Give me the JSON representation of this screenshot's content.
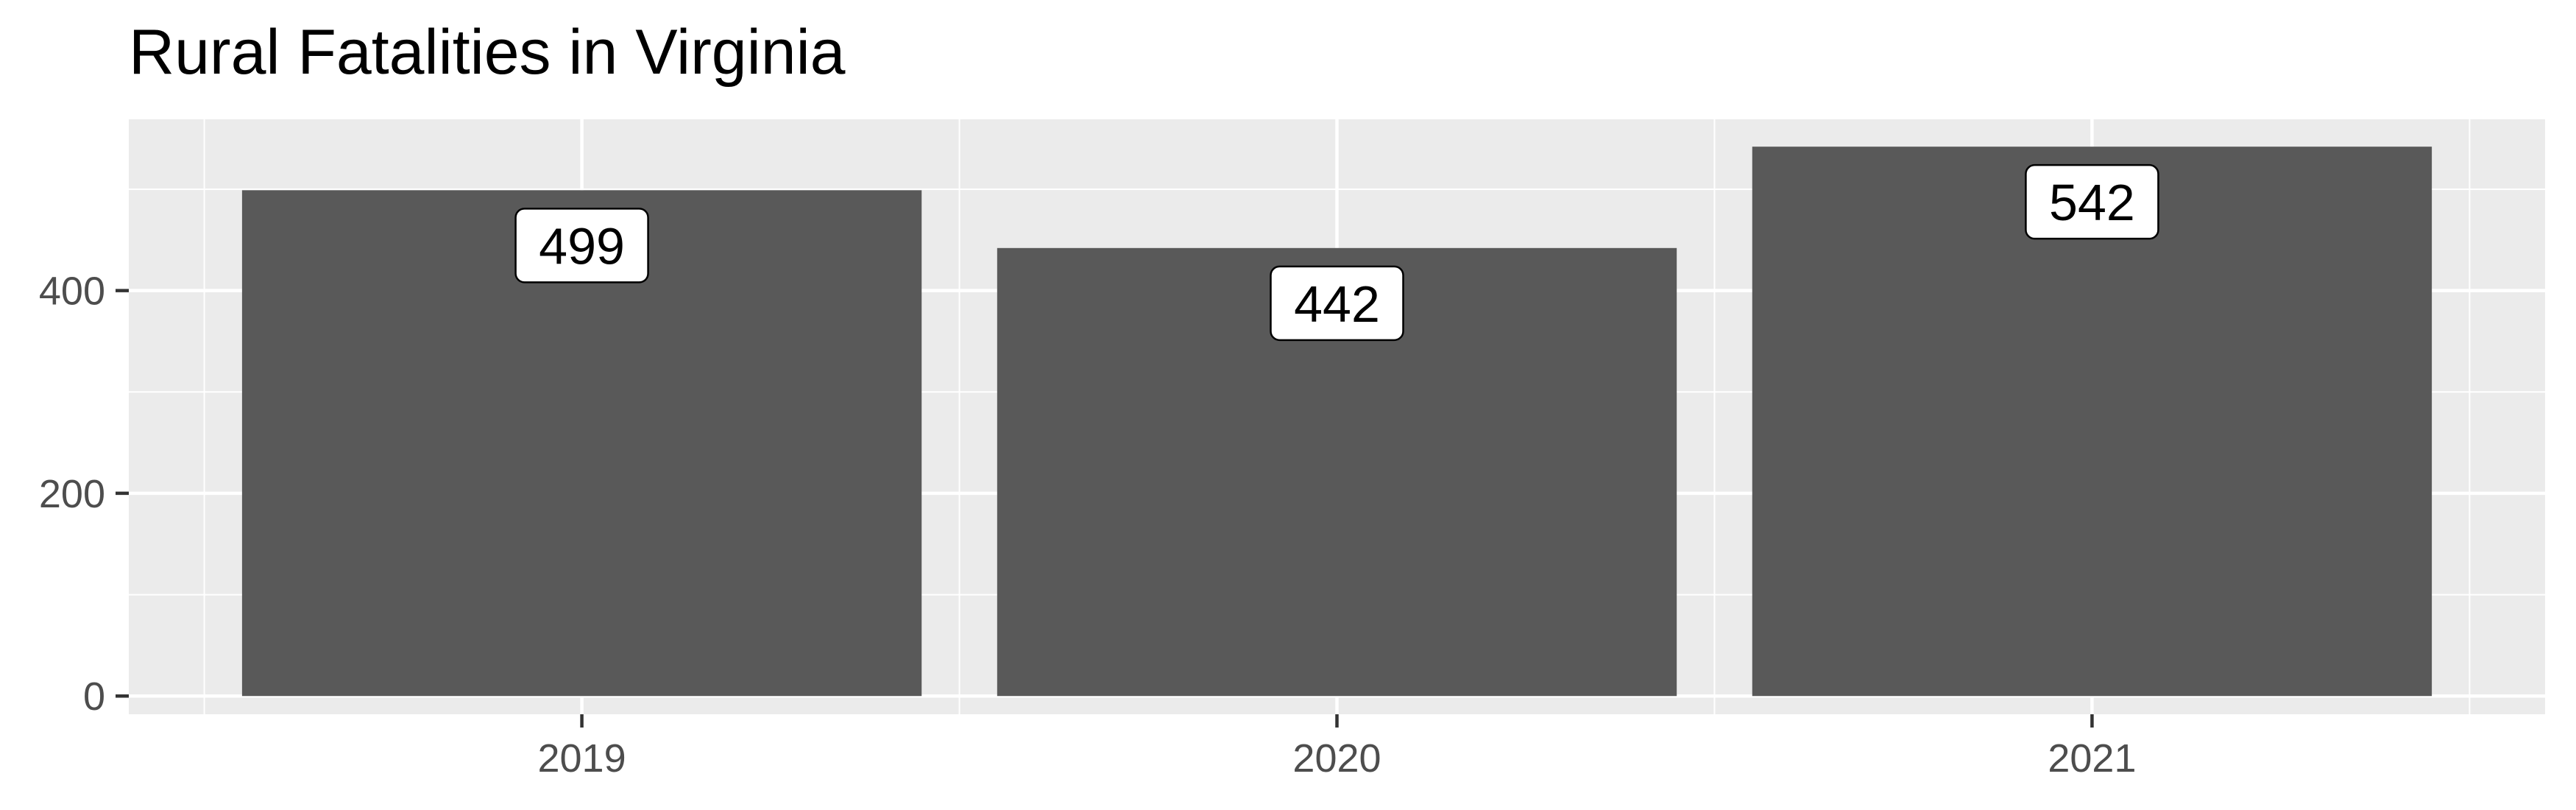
{
  "chart_data": {
    "type": "bar",
    "title": "Rural Fatalities in Virginia",
    "xlabel": "",
    "ylabel": "",
    "categories": [
      "2019",
      "2020",
      "2021"
    ],
    "values": [
      499,
      442,
      542
    ],
    "data_labels": [
      "499",
      "442",
      "542"
    ],
    "yticks": [
      0,
      200,
      400
    ],
    "ytick_labels": [
      "0",
      "200",
      "400"
    ],
    "ylim": [
      -18,
      569
    ],
    "grid": true,
    "legend": "none",
    "colors": {
      "bar": "#595959",
      "panel": "#ebebeb",
      "grid": "#ffffff",
      "text": "#4d4d4d",
      "label_fill": "#ffffff",
      "label_border": "#000000"
    }
  }
}
